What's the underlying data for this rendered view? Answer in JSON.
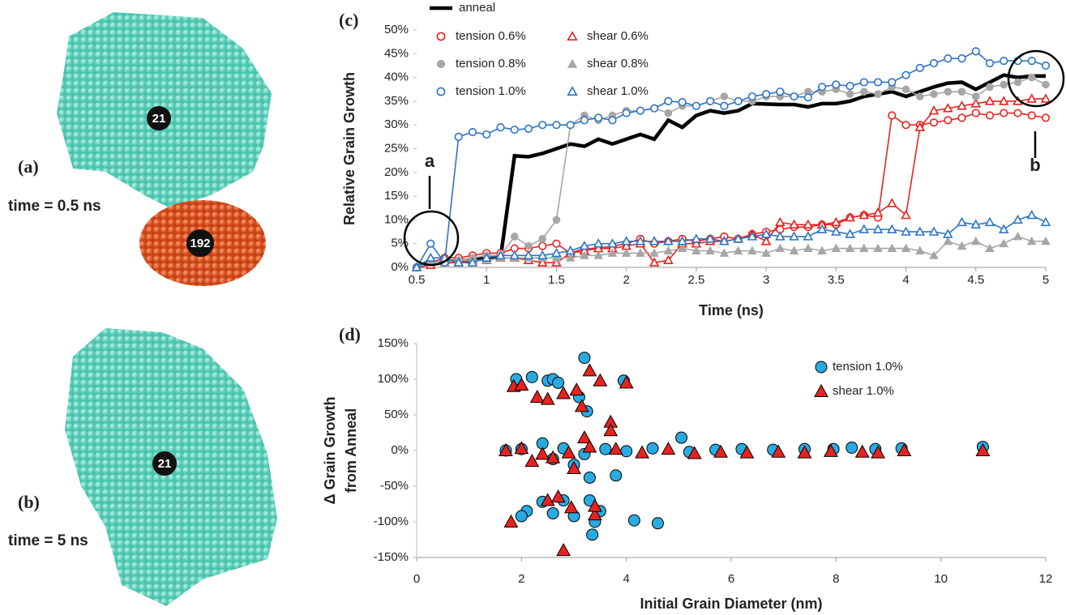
{
  "figure": {
    "panels": [
      {
        "label": "(a)",
        "caption": "time = 0.5 ns",
        "grains": [
          "21",
          "192"
        ]
      },
      {
        "label": "(b)",
        "caption": "time = 5 ns",
        "grains": [
          "21"
        ]
      },
      {
        "label": "(c)"
      },
      {
        "label": "(d)"
      }
    ]
  },
  "chart_data": [
    {
      "type": "line",
      "xlabel": "Time (ns)",
      "ylabel": "Relative Grain Growth",
      "annotations": [
        "a",
        "b"
      ],
      "x": [
        0.5,
        0.6,
        0.7,
        0.8,
        0.9,
        1.0,
        1.1,
        1.2,
        1.3,
        1.4,
        1.5,
        1.6,
        1.7,
        1.8,
        1.9,
        2.0,
        2.1,
        2.2,
        2.3,
        2.4,
        2.5,
        2.6,
        2.7,
        2.8,
        2.9,
        3.0,
        3.1,
        3.2,
        3.3,
        3.4,
        3.5,
        3.6,
        3.7,
        3.8,
        3.9,
        4.0,
        4.1,
        4.2,
        4.3,
        4.4,
        4.5,
        4.6,
        4.7,
        4.8,
        4.9,
        5.0
      ],
      "xlim": [
        0.5,
        5
      ],
      "xticks": [
        0.5,
        1,
        1.5,
        2,
        2.5,
        3,
        3.5,
        4,
        4.5,
        5
      ],
      "ylim": [
        0,
        50
      ],
      "yticks": [
        {
          "value": 0,
          "label": "0%"
        },
        {
          "value": 5,
          "label": "5%"
        },
        {
          "value": 10,
          "label": "10%"
        },
        {
          "value": 15,
          "label": "15%"
        },
        {
          "value": 20,
          "label": "20%"
        },
        {
          "value": 25,
          "label": "25%"
        },
        {
          "value": 30,
          "label": "30%"
        },
        {
          "value": 35,
          "label": "35%"
        },
        {
          "value": 40,
          "label": "40%"
        },
        {
          "value": 45,
          "label": "45%"
        },
        {
          "value": 50,
          "label": "50%"
        }
      ],
      "series": [
        {
          "name": "anneal",
          "color": "#000000",
          "marker": "none",
          "values": [
            0,
            1,
            1,
            1.5,
            1.5,
            2,
            2,
            23.5,
            23.3,
            24,
            25,
            26,
            25.5,
            27,
            26,
            27,
            28,
            27,
            31,
            29.5,
            32,
            33,
            32.5,
            33,
            34.5,
            34.4,
            34.3,
            34.3,
            33.8,
            34.5,
            34.5,
            35,
            36,
            36.5,
            37,
            36,
            37,
            38,
            38.8,
            39,
            37.5,
            39,
            40.5,
            40,
            40.3,
            40.3
          ]
        },
        {
          "name": "tension 0.6%",
          "color": "#e8231f",
          "marker": "circle-open",
          "values": [
            0,
            1,
            2,
            2,
            2.5,
            3,
            3,
            4,
            4,
            4.5,
            5,
            3,
            4,
            4,
            4.5,
            5,
            6,
            5,
            5.5,
            6,
            5.5,
            6,
            6.5,
            6,
            7,
            7.5,
            8,
            8.5,
            8.5,
            9,
            9,
            10.5,
            11,
            10.5,
            32,
            30,
            30,
            30.5,
            31,
            31.5,
            32.5,
            32,
            32.5,
            32.5,
            32,
            31.5
          ]
        },
        {
          "name": "shear 0.6%",
          "color": "#e8231f",
          "marker": "triangle-open",
          "values": [
            0,
            0.5,
            1,
            1,
            1.5,
            1.5,
            2,
            2,
            1.5,
            1,
            1,
            3,
            3.5,
            4,
            4,
            4.5,
            5,
            1,
            1.5,
            5,
            5,
            5.5,
            5.5,
            6,
            7,
            5.5,
            9.5,
            9,
            9,
            9,
            9.5,
            10.5,
            11,
            11.5,
            13.5,
            11,
            29.5,
            33,
            33.5,
            34,
            34.5,
            35,
            35,
            35,
            35.5,
            35.5
          ]
        },
        {
          "name": "tension 0.8%",
          "color": "#a6a6a6",
          "marker": "circle",
          "values": [
            0,
            1,
            1.5,
            1.5,
            2,
            2.5,
            2.5,
            6.5,
            4.5,
            6,
            10,
            30,
            32,
            31,
            32,
            33,
            33,
            33.5,
            32.5,
            34,
            34,
            35,
            36,
            35,
            35,
            36,
            36,
            36,
            37,
            37,
            37.5,
            36.5,
            37,
            36.5,
            38,
            37.5,
            36,
            36.5,
            37,
            37,
            36,
            38,
            38.5,
            39,
            40,
            38.5
          ]
        },
        {
          "name": "shear 0.8%",
          "color": "#a6a6a6",
          "marker": "triangle",
          "values": [
            0,
            1,
            1,
            1.5,
            1.5,
            1.5,
            2,
            2,
            2,
            2,
            2,
            2,
            2.5,
            2.5,
            3,
            3,
            3,
            3,
            3.5,
            4,
            3.5,
            3.5,
            3,
            3.5,
            3.5,
            3,
            4,
            3.5,
            4,
            3.5,
            4,
            4,
            4,
            4,
            4,
            4,
            3.5,
            2.5,
            5.5,
            4.5,
            5.5,
            4,
            5,
            6.5,
            5.5,
            5.5
          ]
        },
        {
          "name": "tension 1.0%",
          "color": "#2e74c4",
          "marker": "circle-open",
          "values": [
            0,
            5,
            1,
            27.5,
            28.5,
            28,
            29.5,
            29,
            29.2,
            30,
            30,
            30,
            31,
            31.5,
            31,
            32.5,
            33,
            33.5,
            35,
            34.8,
            34,
            35,
            34,
            35,
            36,
            36.5,
            37,
            36,
            35.8,
            38,
            38.5,
            38.2,
            39,
            39,
            39,
            40.5,
            42,
            43,
            44,
            44,
            45.5,
            43,
            43.5,
            43.5,
            43.5,
            42.5
          ]
        },
        {
          "name": "shear 1.0%",
          "color": "#2e74c4",
          "marker": "triangle-open",
          "values": [
            0,
            2,
            2,
            1,
            1,
            2,
            2.5,
            2.5,
            2.5,
            2.5,
            3,
            3.5,
            4.5,
            5,
            5,
            5.5,
            5.5,
            5.5,
            5.5,
            5.5,
            6,
            6,
            5.5,
            6,
            6.5,
            7,
            6.5,
            6.5,
            6.5,
            8,
            7.5,
            7,
            8,
            8,
            8,
            7.5,
            7.5,
            7.5,
            7,
            9.5,
            9,
            9.5,
            8,
            10,
            11,
            9.5
          ]
        }
      ]
    },
    {
      "type": "scatter",
      "xlabel": "Initial Grain Diameter (nm)",
      "ylabel": [
        "Δ Grain Growth",
        "from Anneal"
      ],
      "xlim": [
        0,
        12
      ],
      "xticks": [
        0,
        2,
        4,
        6,
        8,
        10,
        12
      ],
      "ylim": [
        -150,
        150
      ],
      "yticks": [
        {
          "value": -150,
          "label": "-150%"
        },
        {
          "value": -100,
          "label": "-100%"
        },
        {
          "value": -50,
          "label": "-50%"
        },
        {
          "value": 0,
          "label": "0%"
        },
        {
          "value": 50,
          "label": "50%"
        },
        {
          "value": 100,
          "label": "100%"
        },
        {
          "value": 150,
          "label": "150%"
        }
      ],
      "series": [
        {
          "name": "tension 1.0%",
          "color": "#29abe2",
          "marker": "circle",
          "x": [
            1.9,
            2.2,
            2.5,
            2.6,
            2.7,
            3.2,
            3.1,
            3.25,
            3.95,
            2.1,
            2.0,
            2.4,
            2.6,
            2.8,
            3.0,
            3.3,
            3.35,
            3.4,
            3.5,
            4.15,
            4.6,
            3.8,
            3.3,
            5.05,
            10.8,
            9.25,
            8.75,
            8.3,
            7.95,
            7.4,
            6.8,
            6.2,
            5.7,
            5.2,
            4.5,
            4.0,
            3.6,
            3.2,
            2.8,
            2.4,
            2.0,
            1.7,
            2.6,
            3.0
          ],
          "values": [
            100,
            103,
            98,
            100,
            95,
            130,
            75,
            55,
            98,
            -85,
            -92,
            -72,
            -88,
            -70,
            -92,
            -70,
            -118,
            -100,
            -85,
            -98,
            -102,
            -35,
            -38,
            18,
            5,
            3,
            2,
            4,
            2,
            2,
            1,
            2,
            1,
            -2,
            3,
            -1,
            2,
            -5,
            3,
            10,
            2,
            0,
            -12,
            -20
          ]
        },
        {
          "name": "shear 1.0%",
          "color": "#e8231f",
          "marker": "triangle",
          "x": [
            1.85,
            2.0,
            2.3,
            2.5,
            2.8,
            3.05,
            3.3,
            3.15,
            3.5,
            4.0,
            3.7,
            1.8,
            2.5,
            2.7,
            2.95,
            3.4,
            3.4,
            2.8,
            2.6,
            3.2,
            3.7,
            3.0,
            2.2,
            1.7,
            2.0,
            2.4,
            2.9,
            3.3,
            3.8,
            4.3,
            4.8,
            5.3,
            5.8,
            6.3,
            6.9,
            7.4,
            7.9,
            8.5,
            8.8,
            9.3,
            10.8
          ],
          "values": [
            90,
            92,
            75,
            72,
            80,
            85,
            112,
            62,
            98,
            95,
            40,
            -100,
            -70,
            -65,
            -80,
            -90,
            -78,
            -140,
            -10,
            18,
            28,
            -25,
            -15,
            0,
            3,
            -5,
            -3,
            5,
            2,
            -3,
            2,
            -4,
            -2,
            -3,
            -2,
            -3,
            -1,
            -2,
            -3,
            0,
            0
          ]
        }
      ]
    }
  ]
}
